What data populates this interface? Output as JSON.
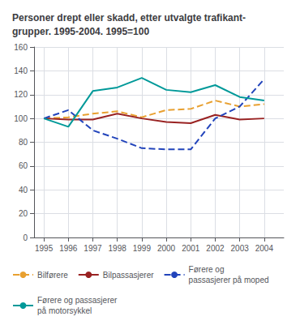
{
  "chart_data": {
    "type": "line",
    "title": "Personer drept eller skadd, etter utvalgte trafikant-\ngrupper. 1995-2004. 1995=100",
    "x": [
      1995,
      1996,
      1997,
      1998,
      1999,
      2000,
      2001,
      2002,
      2003,
      2004
    ],
    "series": [
      {
        "name": "Bilførere",
        "color": "#e8a030",
        "line_style": "dashed",
        "values": [
          100,
          101,
          104,
          106,
          101,
          107,
          108,
          115,
          110,
          112
        ]
      },
      {
        "name": "Bilpassasjerer",
        "color": "#992222",
        "line_style": "solid",
        "values": [
          100,
          99,
          99,
          104,
          100,
          97,
          96,
          103,
          99,
          100
        ]
      },
      {
        "name": "Førere og\npassasjerer på moped",
        "color": "#2244bb",
        "line_style": "dashed",
        "values": [
          100,
          107,
          90,
          83,
          75,
          74,
          74,
          100,
          110,
          133
        ]
      },
      {
        "name": "Førere og passasjerer\npå motorsykkel",
        "color": "#009999",
        "line_style": "solid",
        "values": [
          100,
          93,
          123,
          126,
          134,
          124,
          122,
          128,
          118,
          115
        ]
      }
    ],
    "xlim": [
      1994.6,
      2004.8
    ],
    "xticks": [
      1995,
      1996,
      1997,
      1998,
      1999,
      2000,
      2001,
      2002,
      2003,
      2004
    ],
    "ylim": [
      0,
      160
    ],
    "yticks": [
      0,
      20,
      40,
      60,
      80,
      100,
      120,
      140,
      160
    ],
    "grid": true,
    "legend": "bottom"
  }
}
